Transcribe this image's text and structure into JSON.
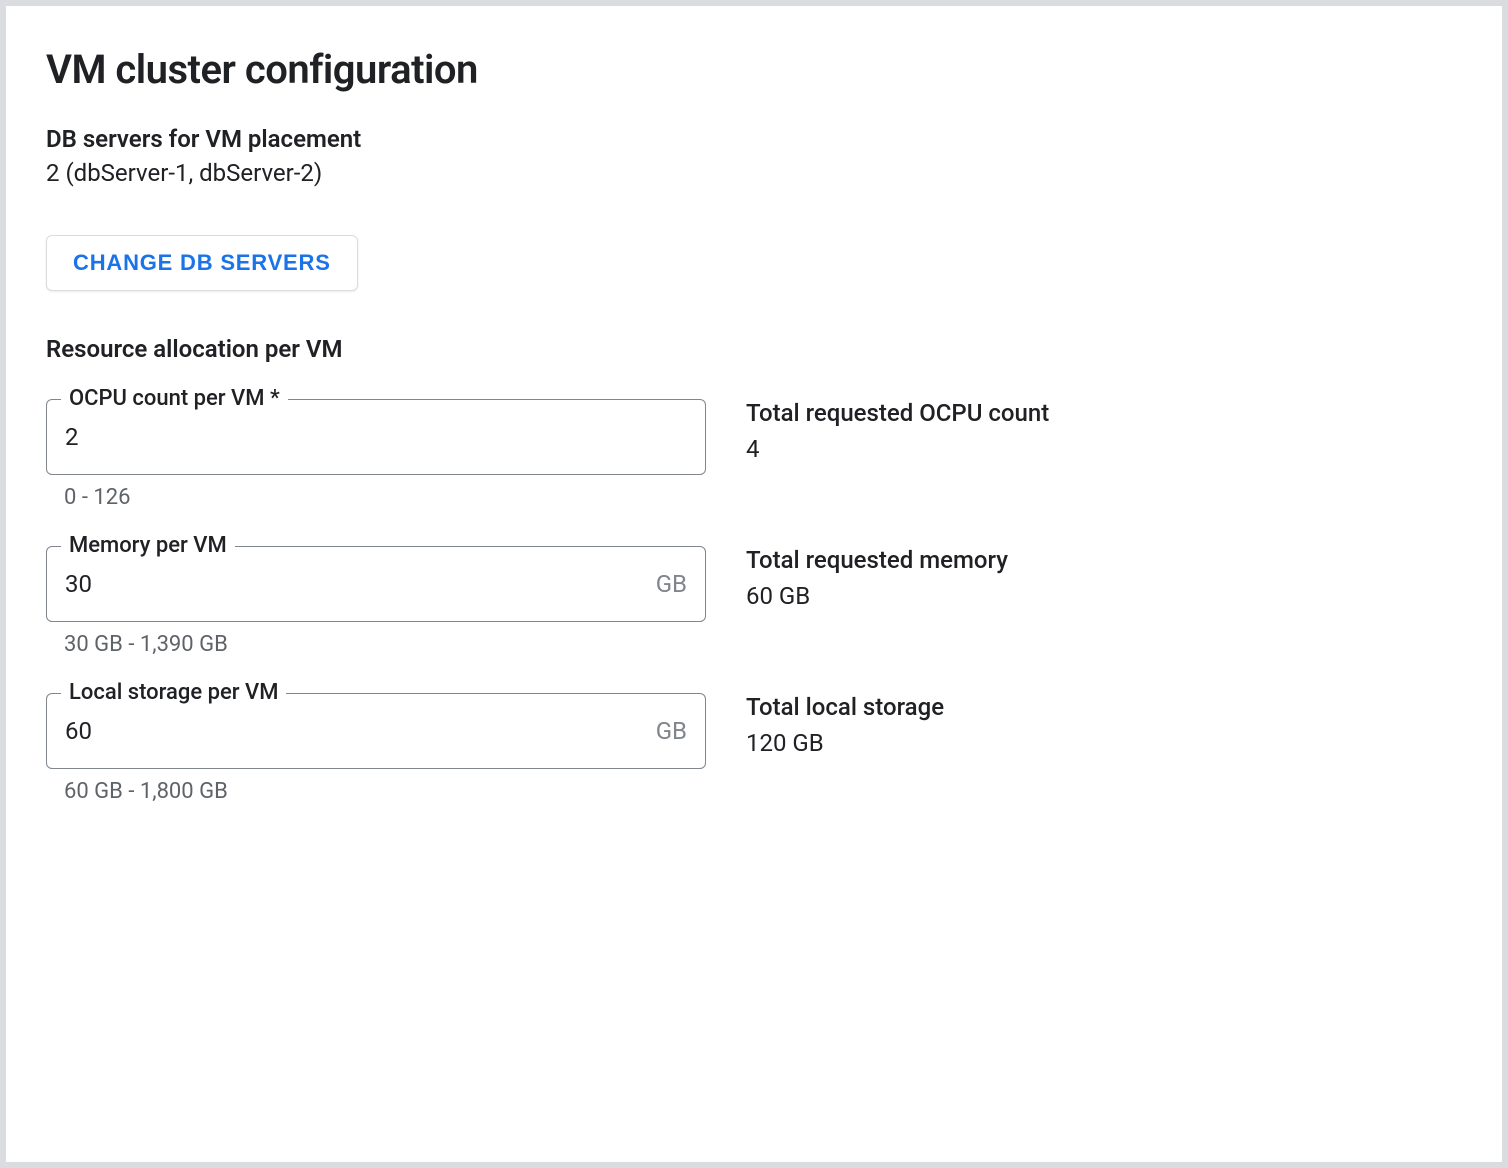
{
  "header": {
    "title": "VM cluster configuration"
  },
  "db_servers": {
    "label": "DB servers for VM placement",
    "value": "2 (dbServer-1, dbServer-2)",
    "change_button_label": "CHANGE DB SERVERS"
  },
  "resource_allocation": {
    "section_label": "Resource allocation per VM",
    "ocpu": {
      "field_label": "OCPU count per VM *",
      "value": "2",
      "helper": "0 - 126",
      "total_label": "Total requested OCPU count",
      "total_value": "4"
    },
    "memory": {
      "field_label": "Memory per VM",
      "value": "30",
      "unit": "GB",
      "helper": "30 GB - 1,390 GB",
      "total_label": "Total requested memory",
      "total_value": "60 GB"
    },
    "storage": {
      "field_label": "Local storage per VM",
      "value": "60",
      "unit": "GB",
      "helper": "60 GB - 1,800 GB",
      "total_label": "Total local storage",
      "total_value": "120 GB"
    }
  },
  "colors": {
    "background": "#dadce0",
    "panel_bg": "#ffffff",
    "text_primary": "#202124",
    "text_secondary": "#5f6368",
    "text_tertiary": "#80868b",
    "border": "#80868b",
    "button_text": "#1a73e8",
    "button_border": "#dadce0"
  }
}
